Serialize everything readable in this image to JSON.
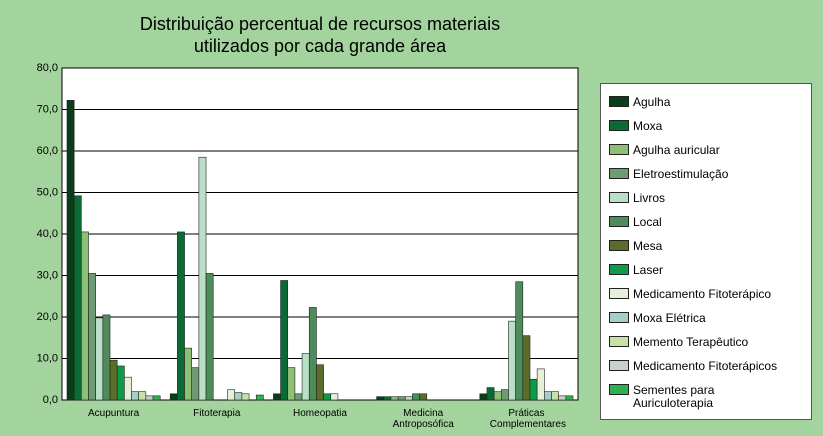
{
  "chart_data": {
    "type": "bar",
    "title": [
      "Distribuição percentual de recursos materiais",
      "utilizados por cada grande área"
    ],
    "categories": [
      "Acupuntura",
      "Fitoterapia",
      "Homeopatia",
      "Medicina Antroposófica",
      "Práticas Complementares"
    ],
    "ylim": [
      0,
      80
    ],
    "yticks": [
      {
        "value": 0,
        "label": "0,0"
      },
      {
        "value": 10,
        "label": "10,0"
      },
      {
        "value": 20,
        "label": "20,0"
      },
      {
        "value": 30,
        "label": "30,0"
      },
      {
        "value": 40,
        "label": "40,0"
      },
      {
        "value": 50,
        "label": "50,0"
      },
      {
        "value": 60,
        "label": "60,0"
      },
      {
        "value": 70,
        "label": "70,0"
      },
      {
        "value": 80,
        "label": "80,0"
      }
    ],
    "grid": true,
    "legend": "right",
    "series": [
      {
        "name": "Agulha",
        "color": "#0a3d1a",
        "values": [
          72.2,
          1.5,
          1.5,
          0.8,
          1.5
        ]
      },
      {
        "name": "Moxa",
        "color": "#0b6b35",
        "values": [
          49.2,
          40.5,
          28.8,
          0.8,
          3.0
        ]
      },
      {
        "name": "Agulha auricular",
        "color": "#8dbf75",
        "values": [
          40.5,
          12.5,
          7.8,
          0.8,
          2.0
        ]
      },
      {
        "name": "Eletroestimulação",
        "color": "#6e9c72",
        "values": [
          30.5,
          7.8,
          1.5,
          0.8,
          2.5
        ]
      },
      {
        "name": "Livros",
        "color": "#b9e0c6",
        "values": [
          19.8,
          58.5,
          11.2,
          0.8,
          19.0
        ]
      },
      {
        "name": "Local",
        "color": "#4e8c5c",
        "values": [
          20.5,
          30.5,
          22.3,
          1.5,
          28.5
        ]
      },
      {
        "name": "Mesa",
        "color": "#5a6e2a",
        "values": [
          9.6,
          0,
          8.5,
          1.5,
          15.5
        ]
      },
      {
        "name": "Laser",
        "color": "#0e9a48",
        "values": [
          8.2,
          0,
          1.5,
          0,
          5.0
        ]
      },
      {
        "name": "Medicamento Fitoterápico",
        "color": "#e6efd7",
        "values": [
          5.5,
          2.5,
          1.5,
          0,
          7.5
        ]
      },
      {
        "name": "Moxa Elétrica",
        "color": "#a4cfc8",
        "values": [
          2.0,
          1.8,
          0,
          0,
          2.0
        ]
      },
      {
        "name": "Memento Terapêutico",
        "color": "#c4e3a4",
        "values": [
          2.0,
          1.5,
          0,
          0,
          2.0
        ]
      },
      {
        "name": "Medicamento Fitoterápicos",
        "color": "#c9cfcb",
        "values": [
          1.0,
          0,
          0,
          0,
          1.0
        ]
      },
      {
        "name": "Sementes para Auriculoterapia",
        "color": "#2fb04e",
        "values": [
          1.0,
          1.2,
          0,
          0,
          1.0
        ]
      }
    ]
  }
}
